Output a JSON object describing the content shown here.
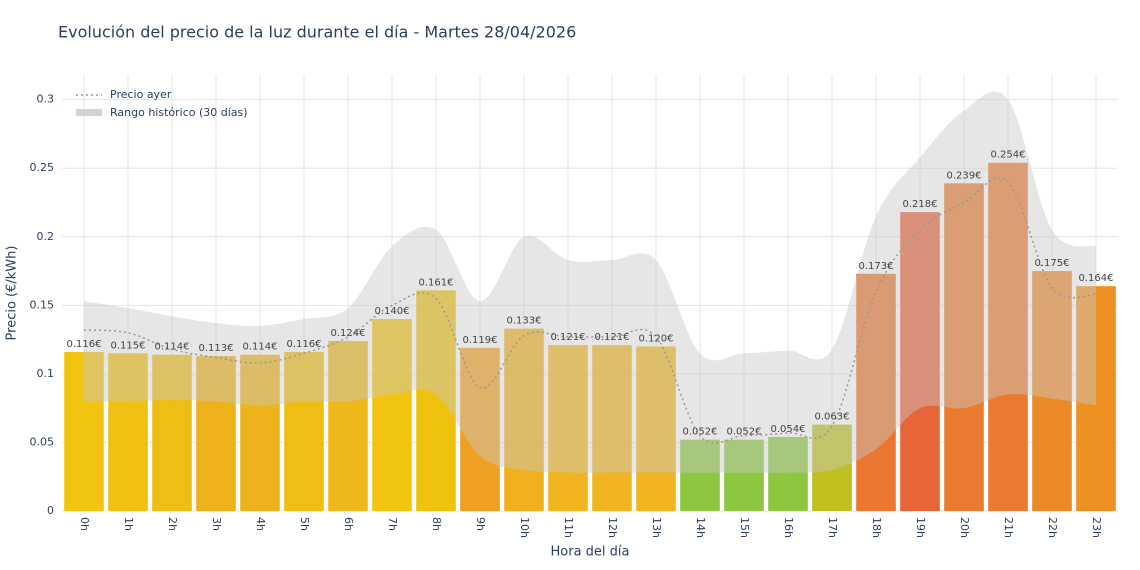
{
  "chart_data": {
    "type": "bar",
    "title": "Evolución del precio de la luz durante el día - Martes 28/04/2026",
    "x_label": "Hora del día",
    "y_label": "Precio (€/kWh)",
    "categories": [
      "0h",
      "1h",
      "2h",
      "3h",
      "4h",
      "5h",
      "6h",
      "7h",
      "8h",
      "9h",
      "10h",
      "11h",
      "12h",
      "13h",
      "14h",
      "15h",
      "16h",
      "17h",
      "18h",
      "19h",
      "20h",
      "21h",
      "22h",
      "23h"
    ],
    "ylim": [
      0,
      0.318
    ],
    "yticks": [
      0,
      0.05,
      0.1,
      0.15,
      0.2,
      0.25,
      0.3
    ],
    "grid": true,
    "legend": "top-left",
    "bars": {
      "values": [
        0.116,
        0.115,
        0.114,
        0.113,
        0.114,
        0.116,
        0.124,
        0.14,
        0.161,
        0.119,
        0.133,
        0.121,
        0.121,
        0.12,
        0.052,
        0.052,
        0.054,
        0.063,
        0.173,
        0.218,
        0.239,
        0.254,
        0.175,
        0.164
      ],
      "value_labels": [
        "0.116€",
        "0.115€",
        "0.114€",
        "0.113€",
        "0.114€",
        "0.116€",
        "0.124€",
        "0.140€",
        "0.161€",
        "0.119€",
        "0.133€",
        "0.121€",
        "0.121€",
        "0.120€",
        "0.052€",
        "0.052€",
        "0.054€",
        "0.063€",
        "0.173€",
        "0.218€",
        "0.239€",
        "0.254€",
        "0.175€",
        "0.164€"
      ],
      "colors": [
        "#f1c40f",
        "#f0c012",
        "#efbd14",
        "#eeb31a",
        "#eeb21a",
        "#efbd14",
        "#eeb81a",
        "#f0c40f",
        "#efc20f",
        "#f0a020",
        "#f0b020",
        "#f0b520",
        "#f0b520",
        "#f0b520",
        "#8dc63f",
        "#8dc63f",
        "#8dc63f",
        "#c0c020",
        "#ea7630",
        "#e8653a",
        "#ea7a30",
        "#ea7a30",
        "#ec8a2a",
        "#ef9023"
      ]
    },
    "line": {
      "name": "Precio ayer",
      "color": "#999999",
      "values": [
        0.132,
        0.13,
        0.118,
        0.112,
        0.108,
        0.115,
        0.127,
        0.15,
        0.155,
        0.09,
        0.128,
        0.127,
        0.127,
        0.127,
        0.055,
        0.055,
        0.057,
        0.062,
        0.16,
        0.205,
        0.225,
        0.24,
        0.163,
        0.158
      ]
    },
    "band": {
      "name": "Rango histórico (30 días)",
      "color": "#c8c8c8",
      "upper": [
        0.153,
        0.148,
        0.142,
        0.137,
        0.135,
        0.14,
        0.148,
        0.193,
        0.205,
        0.153,
        0.2,
        0.183,
        0.183,
        0.183,
        0.115,
        0.115,
        0.117,
        0.118,
        0.215,
        0.258,
        0.292,
        0.3,
        0.205,
        0.193
      ],
      "lower": [
        0.08,
        0.08,
        0.081,
        0.08,
        0.077,
        0.08,
        0.08,
        0.085,
        0.085,
        0.04,
        0.03,
        0.028,
        0.028,
        0.028,
        0.028,
        0.028,
        0.028,
        0.03,
        0.045,
        0.075,
        0.075,
        0.085,
        0.082,
        0.077
      ]
    }
  }
}
